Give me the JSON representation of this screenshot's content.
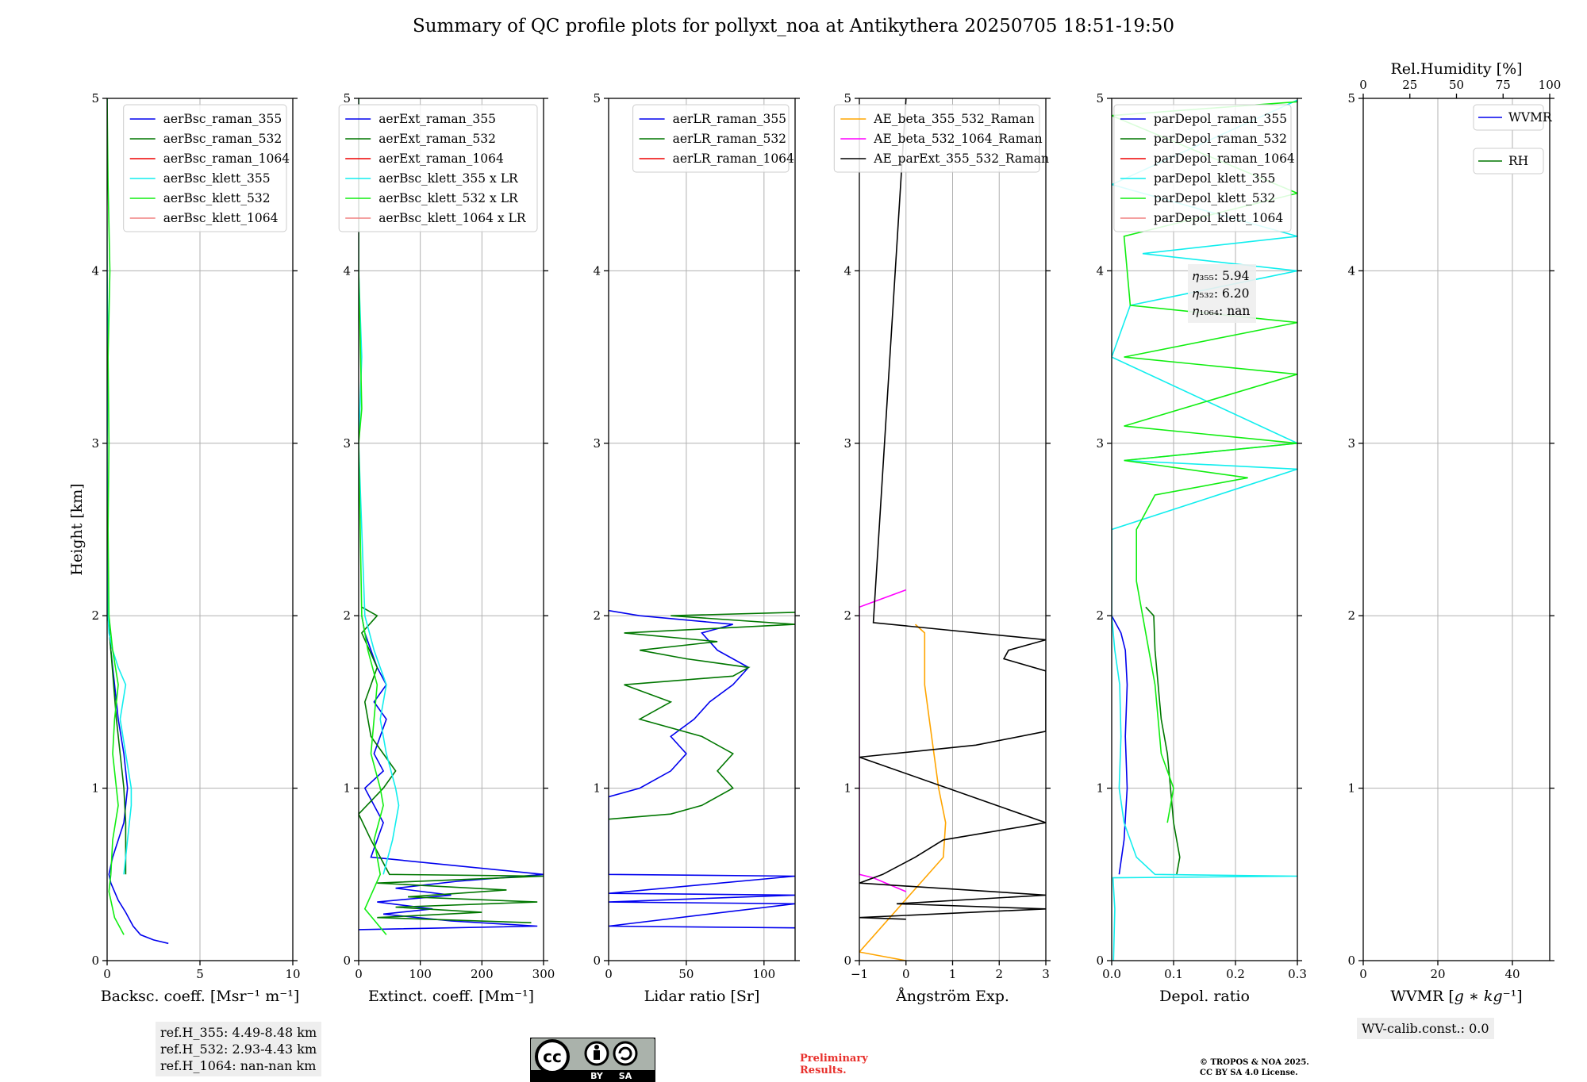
{
  "title": "Summary of QC profile plots for pollyxt_noa at Antikythera 20250705 18:51-19:50",
  "colors": {
    "blue": "#0000ee",
    "green": "#007700",
    "red": "#ee0000",
    "cyan": "#11eeee",
    "lime": "#11ee11",
    "pink": "#f08080",
    "orange": "#ffa500",
    "magenta": "#ff00ff",
    "black": "#000000"
  },
  "chart_data": [
    {
      "type": "line",
      "id": "bsc",
      "xlabel": "Backsc. coeff. [Msr⁻¹ m⁻¹]",
      "ylabel": "Height [km]",
      "xlim": [
        0,
        10
      ],
      "ylim": [
        0,
        5
      ],
      "xticks": [
        0,
        5,
        10
      ],
      "yticks": [
        0,
        1,
        2,
        3,
        4,
        5
      ],
      "legend_position": "top-right",
      "series": [
        {
          "name": "aerBsc_raman_355",
          "color": "#0000ee",
          "y": [
            0.1,
            0.12,
            0.15,
            0.2,
            0.28,
            0.35,
            0.45,
            0.5,
            0.6,
            0.8,
            1.0,
            1.2,
            1.4,
            1.6,
            1.8,
            2.0
          ],
          "x": [
            3.3,
            2.5,
            1.8,
            1.4,
            1.0,
            0.6,
            0.2,
            0.1,
            0.3,
            0.9,
            1.1,
            0.9,
            0.6,
            0.4,
            0.2,
            0.05
          ]
        },
        {
          "name": "aerBsc_raman_532",
          "color": "#007700",
          "y": [
            0.5,
            0.6,
            0.8,
            1.0,
            1.2,
            1.4,
            1.6,
            1.8,
            2.0
          ],
          "x": [
            1.0,
            1.0,
            1.0,
            0.9,
            0.7,
            0.5,
            0.35,
            0.2,
            0.05
          ]
        },
        {
          "name": "aerBsc_raman_1064",
          "color": "#ee0000",
          "y": [],
          "x": []
        },
        {
          "name": "aerBsc_klett_355",
          "color": "#11eeee",
          "y": [
            0.5,
            0.7,
            0.9,
            1.0,
            1.2,
            1.4,
            1.6,
            1.7,
            1.8,
            1.9,
            2.0,
            2.4,
            3.0,
            3.5,
            4.0,
            4.6,
            5.0
          ],
          "x": [
            0.9,
            1.1,
            1.3,
            1.3,
            1.0,
            0.7,
            1.0,
            0.6,
            0.3,
            0.1,
            0.05,
            0.02,
            0.0,
            0.05,
            0.0,
            -0.02,
            0.0
          ]
        },
        {
          "name": "aerBsc_klett_532",
          "color": "#11ee11",
          "y": [
            0.15,
            0.25,
            0.4,
            0.5,
            0.7,
            0.9,
            1.0,
            1.2,
            1.4,
            1.6,
            1.8,
            2.0,
            2.5,
            3.0,
            3.5,
            4.0,
            4.5,
            5.0
          ],
          "x": [
            0.9,
            0.4,
            0.1,
            0.2,
            0.3,
            0.6,
            0.5,
            0.3,
            0.4,
            0.6,
            0.3,
            0.1,
            0.05,
            0.1,
            0.05,
            0.15,
            0.05,
            0.0
          ]
        },
        {
          "name": "aerBsc_klett_1064",
          "color": "#f08080",
          "y": [],
          "x": []
        }
      ]
    },
    {
      "type": "line",
      "id": "ext",
      "xlabel": "Extinct. coeff. [Mm⁻¹]",
      "xlim": [
        0,
        300
      ],
      "ylim": [
        0,
        5
      ],
      "xticks": [
        0,
        100,
        200,
        300
      ],
      "yticks": [
        0,
        1,
        2,
        3,
        4,
        5
      ],
      "legend_position": "top-right",
      "series": [
        {
          "name": "aerExt_raman_355",
          "color": "#0000ee",
          "y": [
            0.18,
            0.2,
            0.23,
            0.27,
            0.3,
            0.34,
            0.38,
            0.42,
            0.46,
            0.5,
            0.6,
            0.8,
            1.0,
            1.1,
            1.2,
            1.4,
            1.5,
            1.6,
            1.7,
            1.8,
            1.9,
            2.0
          ],
          "x": [
            0,
            290,
            150,
            40,
            120,
            30,
            150,
            60,
            160,
            300,
            20,
            40,
            10,
            40,
            25,
            45,
            25,
            45,
            30,
            20,
            10,
            5
          ]
        },
        {
          "name": "aerExt_raman_532",
          "color": "#007700",
          "y": [
            0.22,
            0.25,
            0.28,
            0.31,
            0.34,
            0.37,
            0.41,
            0.45,
            0.49,
            0.5,
            0.7,
            0.85,
            1.0,
            1.1,
            1.3,
            1.5,
            1.7,
            1.9,
            2.0,
            2.05
          ],
          "x": [
            280,
            30,
            200,
            60,
            290,
            80,
            240,
            30,
            300,
            50,
            20,
            0,
            40,
            60,
            20,
            10,
            30,
            5,
            30,
            5
          ]
        },
        {
          "name": "aerExt_raman_1064",
          "color": "#ee0000",
          "y": [],
          "x": []
        },
        {
          "name": "aerBsc_klett_355 x LR",
          "color": "#11eeee",
          "y": [
            0.5,
            0.7,
            0.9,
            1.0,
            1.2,
            1.4,
            1.6,
            1.8,
            2.0,
            2.5,
            3.0,
            3.5,
            4.0,
            5.0
          ],
          "x": [
            40,
            55,
            65,
            60,
            45,
            35,
            45,
            25,
            10,
            5,
            0,
            5,
            0,
            0
          ]
        },
        {
          "name": "aerBsc_klett_532 x LR",
          "color": "#11ee11",
          "y": [
            0.15,
            0.3,
            0.5,
            0.7,
            0.9,
            1.0,
            1.2,
            1.4,
            1.6,
            1.8,
            2.0,
            3.0,
            3.2,
            4.0,
            5.0
          ],
          "x": [
            45,
            10,
            35,
            25,
            40,
            35,
            20,
            25,
            30,
            15,
            5,
            0,
            5,
            0,
            0
          ]
        },
        {
          "name": "aerBsc_klett_1064 x LR",
          "color": "#f08080",
          "y": [],
          "x": []
        }
      ]
    },
    {
      "type": "line",
      "id": "lr",
      "xlabel": "Lidar ratio [Sr]",
      "xlim": [
        0,
        120
      ],
      "ylim": [
        0,
        5
      ],
      "xticks": [
        0,
        50,
        100
      ],
      "yticks": [
        0,
        1,
        2,
        3,
        4,
        5
      ],
      "legend_position": "top-right",
      "series": [
        {
          "name": "aerLR_raman_355",
          "color": "#0000ee",
          "y": [
            0.19,
            0.2,
            0.33,
            0.34,
            0.38,
            0.39,
            0.49,
            0.5,
            0.95,
            1.0,
            1.1,
            1.2,
            1.3,
            1.4,
            1.5,
            1.6,
            1.7,
            1.8,
            1.9,
            1.95,
            2.0,
            2.03
          ],
          "x": [
            120,
            0,
            120,
            0,
            120,
            0,
            120,
            0,
            0,
            20,
            40,
            50,
            40,
            55,
            65,
            80,
            90,
            70,
            60,
            80,
            20,
            0
          ]
        },
        {
          "name": "aerLR_raman_532",
          "color": "#007700",
          "y": [
            0.82,
            0.85,
            0.9,
            1.0,
            1.1,
            1.2,
            1.3,
            1.4,
            1.5,
            1.6,
            1.65,
            1.7,
            1.75,
            1.8,
            1.85,
            1.9,
            1.95,
            2.0,
            2.02
          ],
          "x": [
            0,
            40,
            60,
            80,
            70,
            80,
            60,
            20,
            40,
            10,
            80,
            90,
            50,
            20,
            70,
            10,
            120,
            40,
            120
          ]
        },
        {
          "name": "aerLR_raman_1064",
          "color": "#ee0000",
          "y": [],
          "x": []
        }
      ]
    },
    {
      "type": "line",
      "id": "ae",
      "xlabel": "Ångström Exp.",
      "xlim": [
        -1,
        3
      ],
      "ylim": [
        0,
        5
      ],
      "xticks": [
        -1,
        0,
        1,
        2,
        3
      ],
      "yticks": [
        0,
        1,
        2,
        3,
        4,
        5
      ],
      "legend_position": "top-right",
      "series": [
        {
          "name": "AE_beta_355_532_Raman",
          "color": "#ffa500",
          "y": [
            0.0,
            0.05,
            0.6,
            0.8,
            1.0,
            1.2,
            1.4,
            1.6,
            1.8,
            1.9,
            1.95
          ],
          "x": [
            0,
            -1,
            0.8,
            0.85,
            0.7,
            0.6,
            0.5,
            0.4,
            0.4,
            0.4,
            0.2
          ]
        },
        {
          "name": "AE_beta_532_1064_Raman",
          "color": "#ff00ff",
          "y": [
            0.4,
            0.48,
            0.5,
            2.05,
            2.15
          ],
          "x": [
            0,
            -0.7,
            -1,
            -1,
            0
          ]
        },
        {
          "name": "AE_parExt_355_532_Raman",
          "color": "#000000",
          "y": [
            0.24,
            0.25,
            0.3,
            0.33,
            0.38,
            0.45,
            0.5,
            0.6,
            0.7,
            0.8,
            1.18,
            1.25,
            1.33,
            1.68,
            1.75,
            1.8,
            1.86,
            1.96,
            5.0
          ],
          "x": [
            0,
            -1,
            3,
            -0.2,
            3,
            -1,
            -0.5,
            0.2,
            0.8,
            3,
            -1,
            1.5,
            3,
            3,
            2.1,
            2.2,
            3,
            -0.7,
            0
          ]
        }
      ]
    },
    {
      "type": "line",
      "id": "depol",
      "xlabel": "Depol. ratio",
      "xlim": [
        0.0,
        0.3
      ],
      "ylim": [
        0,
        5
      ],
      "xticks": [
        0.0,
        0.1,
        0.2,
        0.3
      ],
      "yticks": [
        0,
        1,
        2,
        3,
        4,
        5
      ],
      "legend_position": "top-right",
      "eta_annotations": [
        "𝜂₃₅₅: 5.94",
        "𝜂₅₃₂: 6.20",
        "𝜂₁₀₆₄: nan"
      ],
      "series": [
        {
          "name": "parDepol_raman_355",
          "color": "#0000ee",
          "y": [
            0.5,
            0.7,
            1.0,
            1.3,
            1.6,
            1.8,
            1.9,
            2.0
          ],
          "x": [
            0.012,
            0.02,
            0.025,
            0.022,
            0.025,
            0.022,
            0.015,
            0.0
          ]
        },
        {
          "name": "parDepol_raman_532",
          "color": "#007700",
          "y": [
            0.5,
            0.6,
            0.8,
            1.0,
            1.2,
            1.4,
            1.6,
            1.8,
            2.0,
            2.05
          ],
          "x": [
            0.105,
            0.11,
            0.1,
            0.095,
            0.09,
            0.08,
            0.075,
            0.07,
            0.068,
            0.055
          ]
        },
        {
          "name": "parDepol_raman_1064",
          "color": "#ee0000",
          "y": [],
          "x": []
        },
        {
          "name": "parDepol_klett_355",
          "color": "#11eeee",
          "y": [
            0.0,
            0.3,
            0.48,
            0.49,
            0.5,
            0.6,
            0.8,
            1.0,
            1.3,
            1.6,
            1.8,
            2.0,
            2.5,
            2.85,
            2.9,
            3.0,
            3.5,
            3.8,
            4.0,
            4.1,
            4.2,
            4.5,
            4.99
          ],
          "x": [
            0.003,
            0.005,
            0.002,
            0.3,
            0.07,
            0.04,
            0.02,
            0.012,
            0.015,
            0.013,
            0.005,
            0.0,
            0.0,
            0.3,
            0.02,
            0.3,
            0.0,
            0.03,
            0.3,
            0.05,
            0.3,
            0.0,
            0.3
          ]
        },
        {
          "name": "parDepol_klett_532",
          "color": "#11ee11",
          "y": [
            0.8,
            1.0,
            1.2,
            1.4,
            1.6,
            1.8,
            2.0,
            2.2,
            2.5,
            2.7,
            2.8,
            2.9,
            3.0,
            3.1,
            3.4,
            3.5,
            3.7,
            3.8,
            4.2,
            4.45,
            4.9,
            4.98
          ],
          "x": [
            0.09,
            0.1,
            0.08,
            0.075,
            0.07,
            0.06,
            0.05,
            0.04,
            0.04,
            0.07,
            0.22,
            0.02,
            0.3,
            0.02,
            0.3,
            0.02,
            0.3,
            0.03,
            0.02,
            0.3,
            0.0,
            0.3
          ]
        },
        {
          "name": "parDepol_klett_1064",
          "color": "#f08080",
          "y": [],
          "x": []
        }
      ]
    },
    {
      "type": "line",
      "id": "wv",
      "xlabel": "WVMR [𝑔 ∗ 𝑘𝑔⁻¹]",
      "xlim": [
        0,
        50
      ],
      "ylim": [
        0,
        5
      ],
      "xticks": [
        0,
        20,
        40
      ],
      "yticks": [
        0,
        1,
        2,
        3,
        4,
        5
      ],
      "top_axis_label": "Rel.Humidity [%]",
      "top_xlim": [
        0,
        100
      ],
      "top_xticks": [
        0,
        25,
        50,
        75,
        100
      ],
      "legend_position": "top-right",
      "series": [
        {
          "name": "WVMR",
          "color": "#0000ee",
          "y": [],
          "x": []
        },
        {
          "name": "RH",
          "color": "#007700",
          "y": [],
          "x": []
        }
      ]
    }
  ],
  "ref_box": [
    "ref.H_355: 4.49-8.48 km",
    "ref.H_532: 2.93-4.43 km",
    "ref.H_1064: nan-nan km"
  ],
  "wv_calib": "WV-calib.const.: 0.0",
  "cc_license": {
    "cc": "cc",
    "by": "BY",
    "sa": "SA"
  },
  "preliminary": [
    "Preliminary",
    "Results."
  ],
  "copyright": [
    "© TROPOS & NOA 2025.",
    "CC BY SA 4.0 License."
  ]
}
